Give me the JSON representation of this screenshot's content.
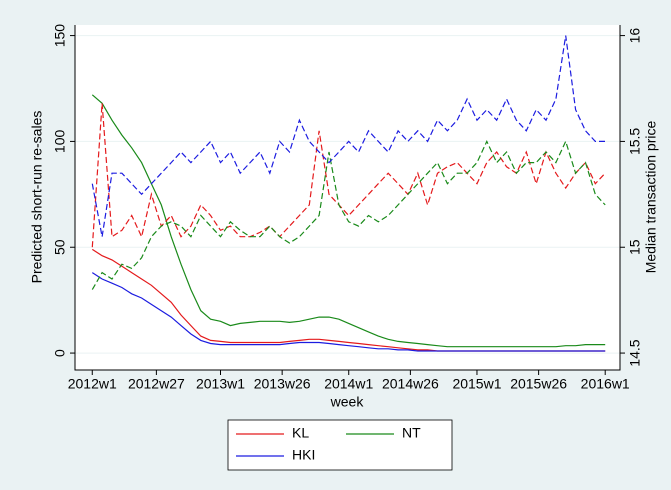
{
  "chart_data": {
    "type": "line",
    "y_label": "Predicted short-run re-sales",
    "y2_label": "Median transaction price",
    "x_label": "week",
    "x": [
      2704,
      2708,
      2712,
      2716,
      2720,
      2724,
      2728,
      2732,
      2736,
      2740,
      2744,
      2748,
      2752,
      2756,
      2760,
      2764,
      2768,
      2772,
      2776,
      2780,
      2784,
      2788,
      2792,
      2796,
      2800,
      2804,
      2808,
      2812,
      2816,
      2820,
      2824,
      2828,
      2832,
      2836,
      2840,
      2844,
      2848,
      2852,
      2856,
      2860,
      2864,
      2868,
      2872,
      2876,
      2880,
      2884,
      2888,
      2892,
      2896,
      2900,
      2904,
      2908,
      2912
    ],
    "xlim": [
      2697,
      2918
    ],
    "xticks": [
      {
        "value": 2704,
        "label": "2012w1"
      },
      {
        "value": 2730,
        "label": "2012w27"
      },
      {
        "value": 2756,
        "label": "2013w1"
      },
      {
        "value": 2781,
        "label": "2013w26"
      },
      {
        "value": 2808,
        "label": "2014w1"
      },
      {
        "value": 2833,
        "label": "2014w26"
      },
      {
        "value": 2860,
        "label": "2015w1"
      },
      {
        "value": 2885,
        "label": "2015w26"
      },
      {
        "value": 2912,
        "label": "2016w1"
      }
    ],
    "ylim": [
      -8,
      155
    ],
    "yticks": [
      0,
      50,
      100,
      150
    ],
    "y2lim": [
      14.42,
      16.05
    ],
    "y2ticks": [
      14.5,
      15,
      15.5,
      16
    ],
    "grid": true,
    "legend_position": "bottom",
    "series": [
      {
        "name": "KL",
        "color": "#e41a1c",
        "line_style": "solid",
        "values": [
          49,
          46,
          44,
          41,
          38,
          35,
          32,
          28,
          24,
          18,
          13,
          8,
          6,
          5.5,
          5,
          5,
          5,
          5,
          5,
          5,
          5.5,
          6,
          6.5,
          6.5,
          6,
          5.5,
          5,
          4.5,
          4,
          3.5,
          3,
          2.5,
          2,
          1.5,
          1.5,
          1,
          1,
          1,
          1,
          1,
          1,
          1,
          1,
          1,
          1,
          1,
          1,
          1,
          1,
          1,
          1,
          1,
          1
        ]
      },
      {
        "name": "NT",
        "color": "#1a8a1a",
        "line_style": "solid",
        "values": [
          122,
          118,
          110,
          103,
          97,
          90,
          80,
          70,
          55,
          42,
          30,
          20,
          16,
          15,
          13,
          14,
          14.5,
          15,
          15,
          15,
          14.5,
          15,
          16,
          17,
          17,
          16,
          14,
          12,
          10,
          8,
          6.5,
          5.5,
          5,
          4.5,
          4,
          3.5,
          3,
          3,
          3,
          3,
          3,
          3,
          3,
          3,
          3,
          3,
          3,
          3,
          3.5,
          3.5,
          4,
          4,
          4
        ]
      },
      {
        "name": "HKI",
        "color": "#1c1ce0",
        "line_style": "solid",
        "values": [
          38,
          35,
          33,
          31,
          28,
          26,
          23,
          20,
          17,
          13,
          9,
          6,
          4.5,
          4,
          4,
          4,
          4,
          4,
          4,
          4,
          4.5,
          5,
          5,
          5,
          4.5,
          4,
          3.5,
          3,
          2.5,
          2,
          2,
          1.5,
          1.5,
          1,
          1,
          1,
          1,
          1,
          1,
          1,
          1,
          1,
          1,
          1,
          1,
          1,
          1,
          1,
          1,
          1,
          1,
          1,
          1
        ]
      },
      {
        "color": "#e41a1c",
        "line_style": "dashed",
        "axis": "y2",
        "values": [
          15,
          15.68,
          15.05,
          15.08,
          15.15,
          15.05,
          15.25,
          15.1,
          15.15,
          15.05,
          15.1,
          15.2,
          15.15,
          15.08,
          15.1,
          15.05,
          15.05,
          15.07,
          15.1,
          15.05,
          15.1,
          15.15,
          15.2,
          15.55,
          15.25,
          15.2,
          15.15,
          15.2,
          15.25,
          15.3,
          15.35,
          15.3,
          15.25,
          15.35,
          15.2,
          15.35,
          15.38,
          15.4,
          15.35,
          15.3,
          15.4,
          15.45,
          15.38,
          15.35,
          15.45,
          15.3,
          15.45,
          15.35,
          15.28,
          15.35,
          15.4,
          15.3,
          15.35
        ]
      },
      {
        "color": "#1a8a1a",
        "line_style": "dashed",
        "axis": "y2",
        "values": [
          14.8,
          14.88,
          14.85,
          14.92,
          14.9,
          14.95,
          15.05,
          15.1,
          15.12,
          15.1,
          15.05,
          15.15,
          15.1,
          15.05,
          15.12,
          15.08,
          15.05,
          15.05,
          15.1,
          15.05,
          15.02,
          15.05,
          15.1,
          15.15,
          15.45,
          15.2,
          15.12,
          15.1,
          15.15,
          15.12,
          15.15,
          15.2,
          15.25,
          15.3,
          15.35,
          15.4,
          15.3,
          15.35,
          15.35,
          15.4,
          15.5,
          15.4,
          15.45,
          15.35,
          15.4,
          15.4,
          15.45,
          15.4,
          15.5,
          15.35,
          15.4,
          15.25,
          15.2
        ]
      },
      {
        "color": "#1c1ce0",
        "line_style": "dashed",
        "axis": "y2",
        "values": [
          15.3,
          15.05,
          15.35,
          15.35,
          15.3,
          15.25,
          15.3,
          15.35,
          15.4,
          15.45,
          15.4,
          15.45,
          15.5,
          15.4,
          15.45,
          15.35,
          15.4,
          15.45,
          15.35,
          15.5,
          15.45,
          15.6,
          15.5,
          15.45,
          15.4,
          15.45,
          15.5,
          15.45,
          15.55,
          15.5,
          15.45,
          15.55,
          15.5,
          15.55,
          15.5,
          15.6,
          15.55,
          15.6,
          15.7,
          15.6,
          15.65,
          15.6,
          15.7,
          15.6,
          15.55,
          15.65,
          15.6,
          15.7,
          16,
          15.65,
          15.55,
          15.5,
          15.5
        ]
      }
    ]
  }
}
